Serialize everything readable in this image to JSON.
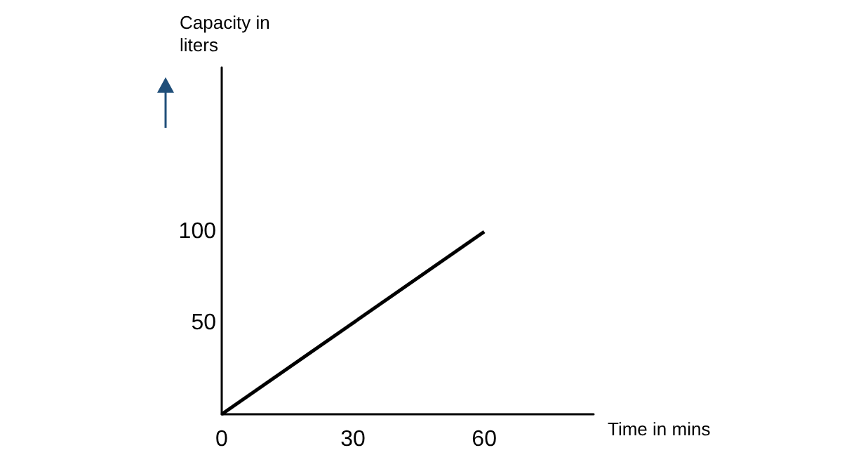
{
  "chart_data": {
    "type": "line",
    "xlabel": "Time in mins",
    "ylabel": "Capacity in\nliters",
    "x": [
      0,
      60
    ],
    "series": [
      {
        "color": "#000000",
        "values": [
          0,
          100
        ]
      }
    ],
    "xlim": [
      0,
      85
    ],
    "xticks": [
      0,
      30,
      60
    ],
    "ylim": [
      0,
      190
    ],
    "yticks": [
      50,
      100
    ],
    "grid": false
  }
}
